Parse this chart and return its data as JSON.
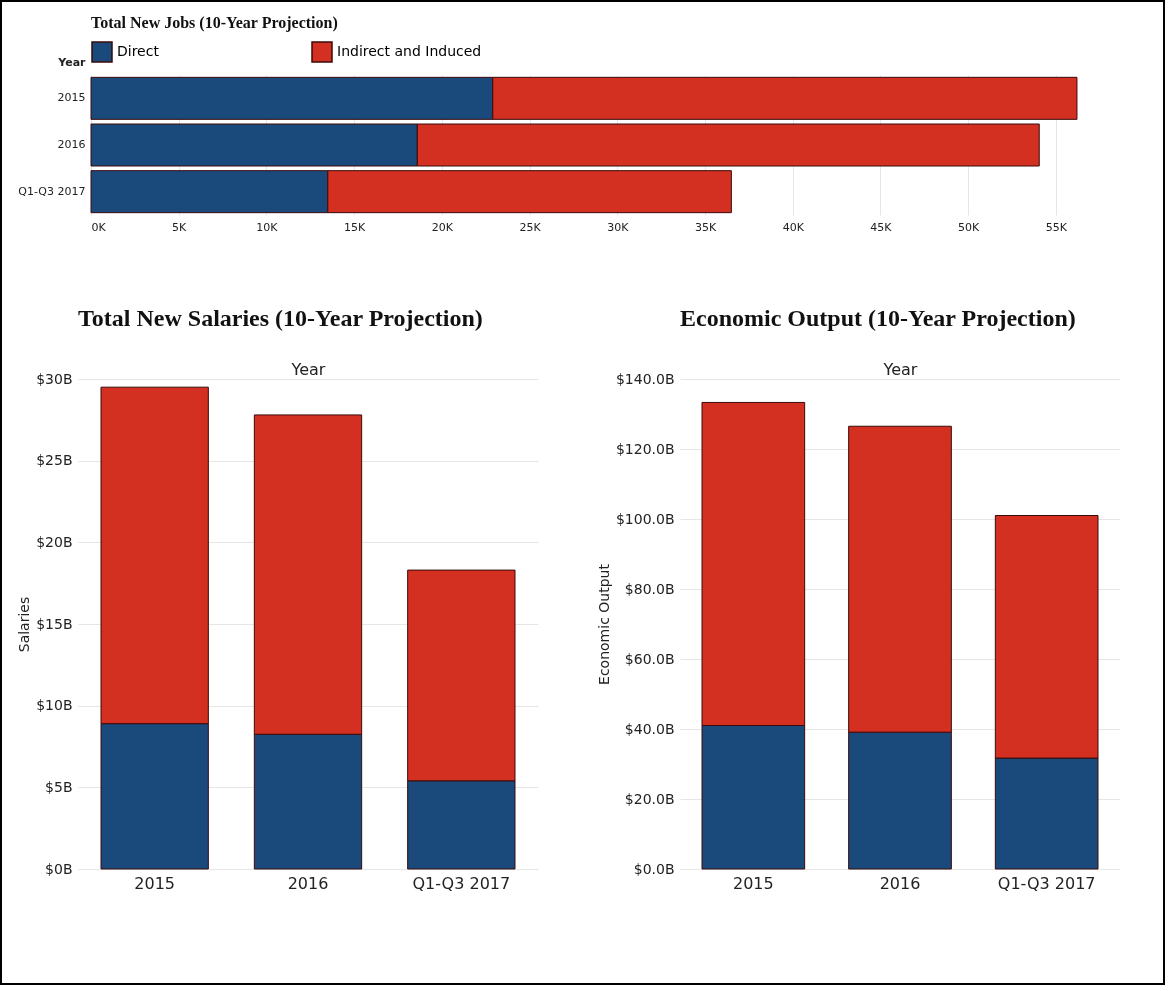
{
  "chart_data": [
    {
      "type": "bar",
      "orientation": "horizontal",
      "stacked": true,
      "title": "Total New Jobs (10-Year Projection)",
      "ylabel": "Year",
      "categories": [
        "2015",
        "2016",
        "Q1-Q3 2017"
      ],
      "series": [
        {
          "name": "Direct",
          "color": "#1a4a7c",
          "values": [
            22900,
            18600,
            13500
          ]
        },
        {
          "name": "Indirect and Induced",
          "color": "#d43022",
          "values": [
            33300,
            35450,
            23000
          ]
        }
      ],
      "xlim": [
        0,
        57000
      ],
      "xticks": [
        {
          "value": 0,
          "label": "0K"
        },
        {
          "value": 5000,
          "label": "5K"
        },
        {
          "value": 10000,
          "label": "10K"
        },
        {
          "value": 15000,
          "label": "15K"
        },
        {
          "value": 20000,
          "label": "20K"
        },
        {
          "value": 25000,
          "label": "25K"
        },
        {
          "value": 30000,
          "label": "30K"
        },
        {
          "value": 35000,
          "label": "35K"
        },
        {
          "value": 40000,
          "label": "40K"
        },
        {
          "value": 45000,
          "label": "45K"
        },
        {
          "value": 50000,
          "label": "50K"
        },
        {
          "value": 55000,
          "label": "55K"
        }
      ],
      "grid": "x",
      "legend": "top"
    },
    {
      "type": "bar",
      "stacked": true,
      "title": "Total New Salaries (10-Year Projection)",
      "xlabel": "Year",
      "ylabel": "Salaries",
      "categories": [
        "2015",
        "2016",
        "Q1-Q3 2017"
      ],
      "series": [
        {
          "color": "#1a4a7c",
          "values": [
            8.9,
            8.25,
            5.4
          ]
        },
        {
          "color": "#d43022",
          "values": [
            20.6,
            19.55,
            12.9
          ]
        }
      ],
      "ylim": [
        0,
        30
      ],
      "yticks": [
        {
          "value": 0,
          "label": "$0B"
        },
        {
          "value": 5,
          "label": "$5B"
        },
        {
          "value": 10,
          "label": "$10B"
        },
        {
          "value": 15,
          "label": "$15B"
        },
        {
          "value": 20,
          "label": "$20B"
        },
        {
          "value": 25,
          "label": "$25B"
        },
        {
          "value": 30,
          "label": "$30B"
        }
      ],
      "grid": "y"
    },
    {
      "type": "bar",
      "stacked": true,
      "title": "Economic Output (10-Year Projection)",
      "xlabel": "Year",
      "ylabel": "Economic Output",
      "categories": [
        "2015",
        "2016",
        "Q1-Q3 2017"
      ],
      "series": [
        {
          "color": "#1a4a7c",
          "values": [
            41.0,
            39.1,
            31.7
          ]
        },
        {
          "color": "#d43022",
          "values": [
            92.3,
            87.4,
            69.3
          ]
        }
      ],
      "ylim": [
        0,
        140
      ],
      "yticks": [
        {
          "value": 0,
          "label": "$0.0B"
        },
        {
          "value": 20,
          "label": "$20.0B"
        },
        {
          "value": 40,
          "label": "$40.0B"
        },
        {
          "value": 60,
          "label": "$60.0B"
        },
        {
          "value": 80,
          "label": "$80.0B"
        },
        {
          "value": 100,
          "label": "$100.0B"
        },
        {
          "value": 120,
          "label": "$120.0B"
        },
        {
          "value": 140,
          "label": "$140.0B"
        }
      ],
      "grid": "y"
    }
  ]
}
